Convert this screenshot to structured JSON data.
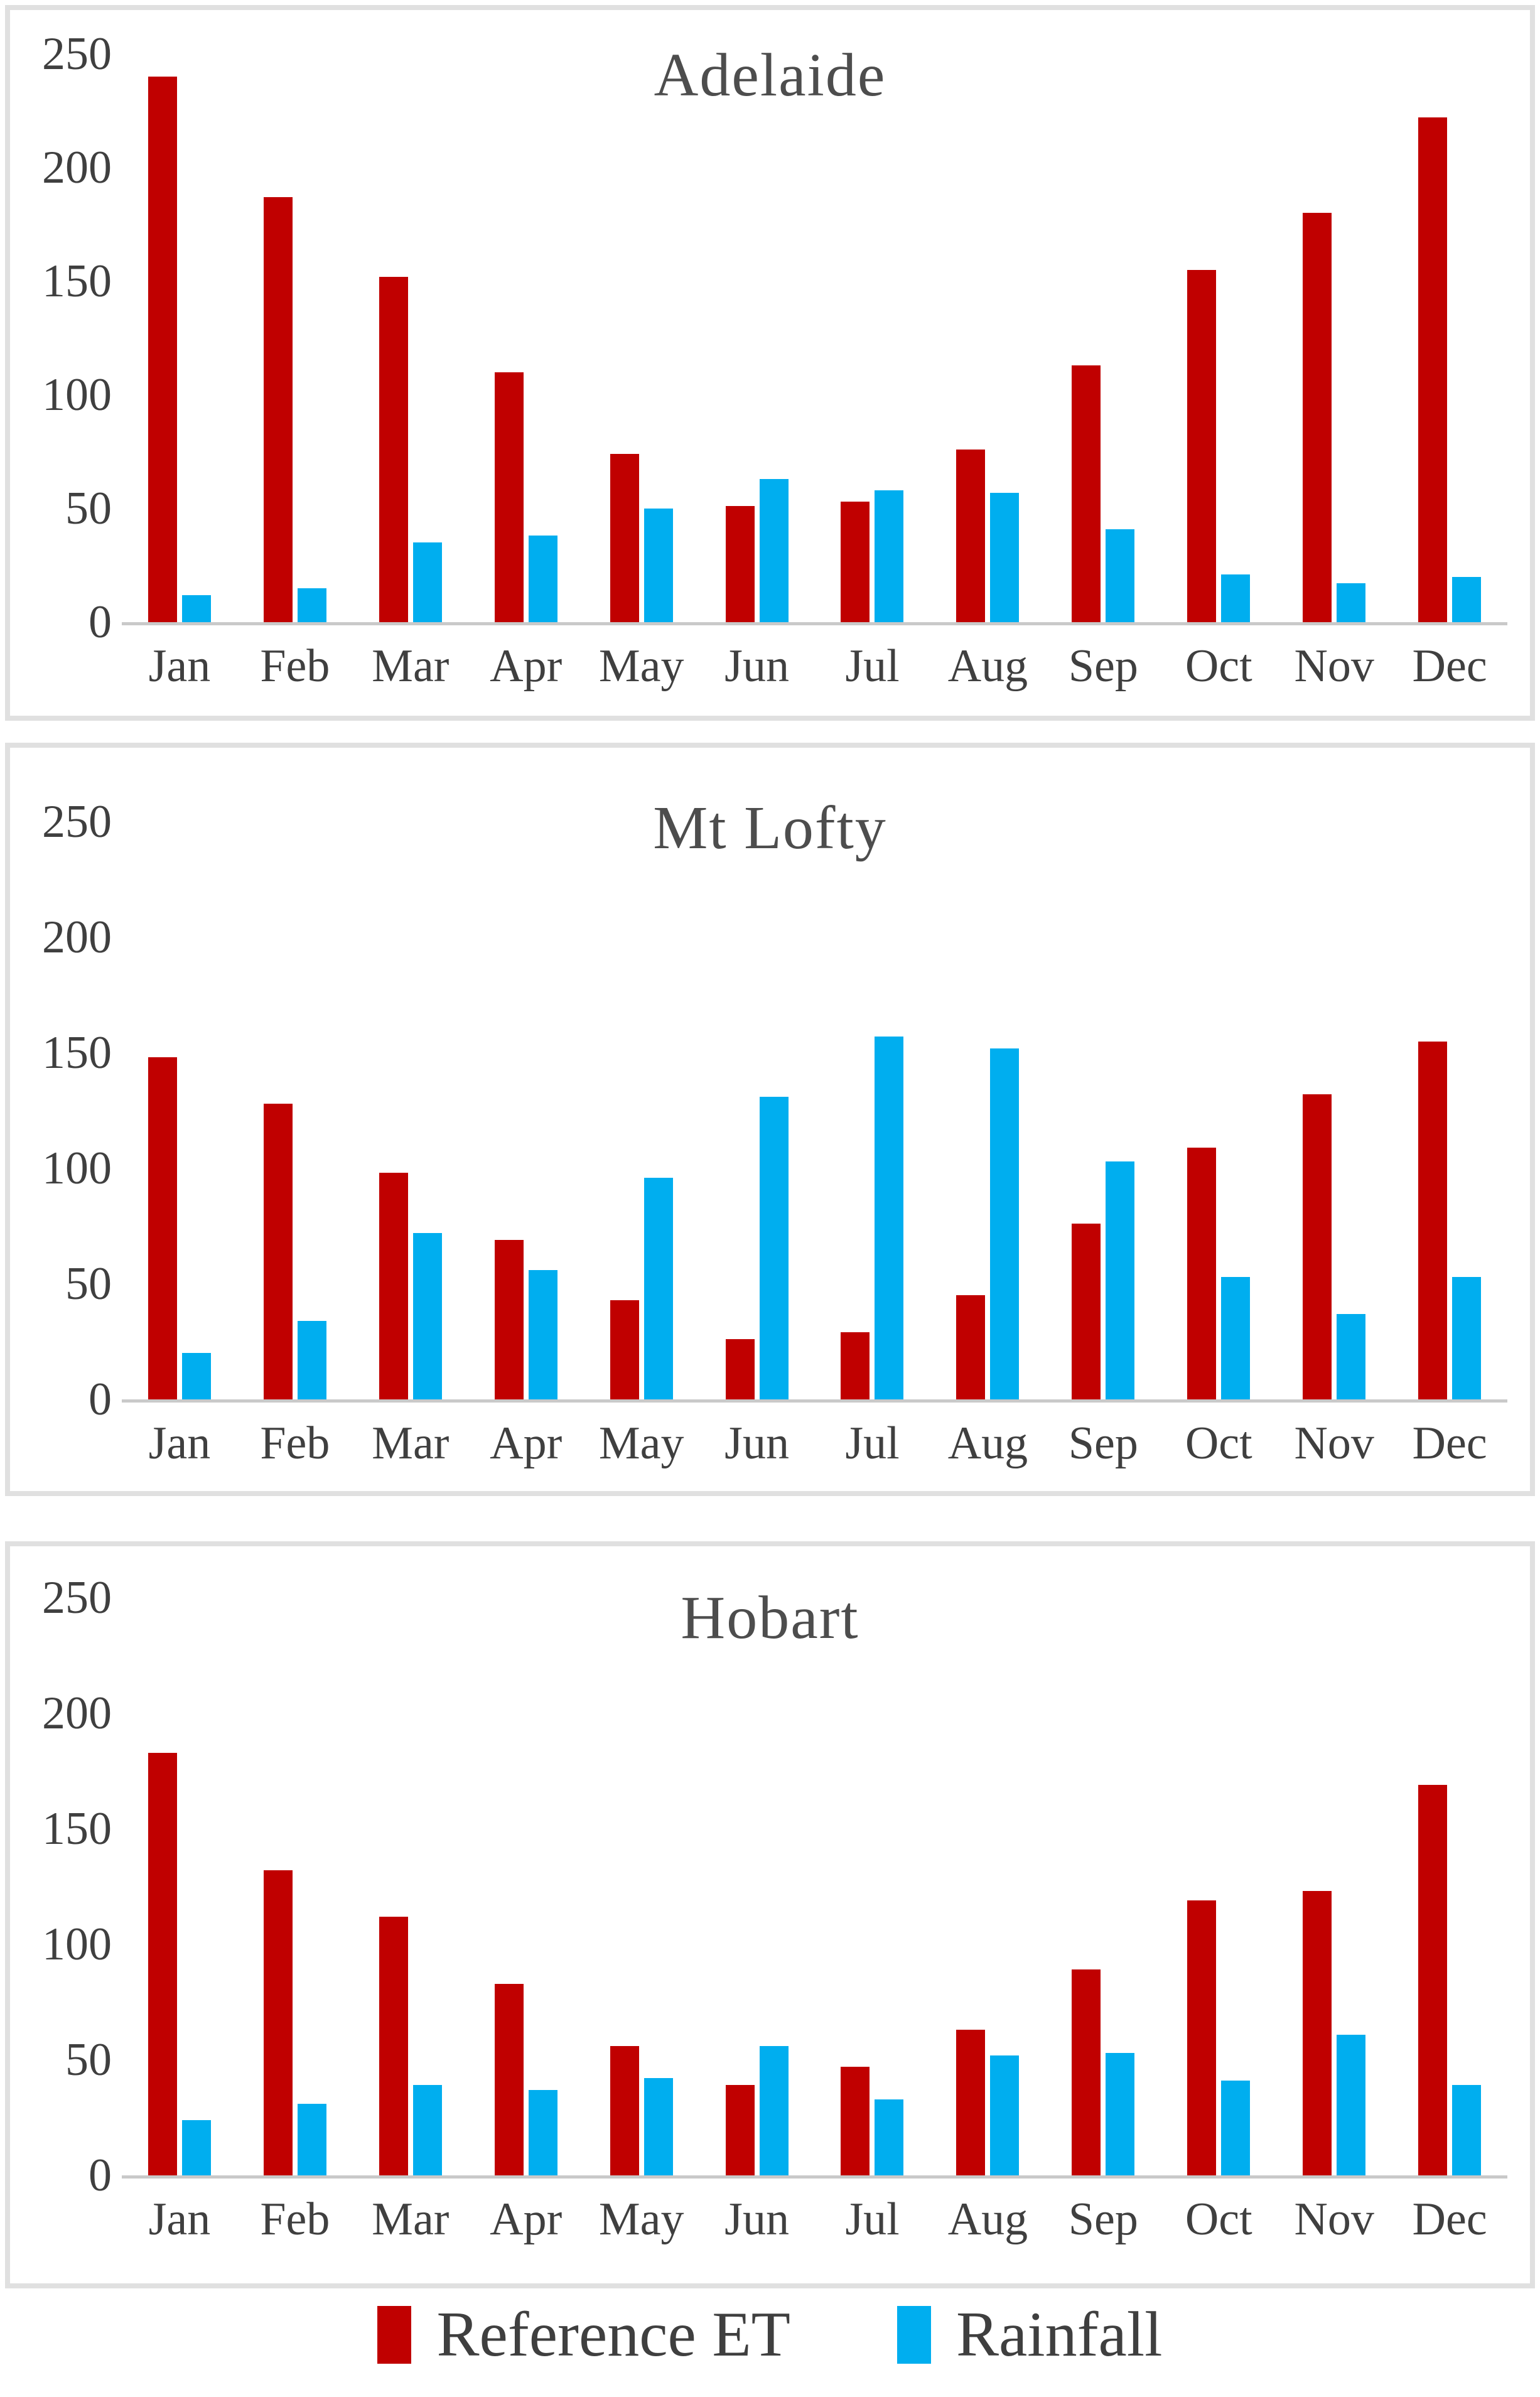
{
  "colors": {
    "reference_et": "#c00000",
    "rainfall": "#00aeef",
    "axis_line": "#c9c9c9",
    "tick_text": "#3f3f3f",
    "title_text": "#4d4d4d",
    "chart_border": "#e0e0e0"
  },
  "legend": {
    "items": [
      {
        "label": "Reference ET",
        "color": "#c00000"
      },
      {
        "label": "Rainfall",
        "color": "#00aeef"
      }
    ]
  },
  "chart_data": [
    {
      "type": "bar",
      "title": "Adelaide",
      "categories": [
        "Jan",
        "Feb",
        "Mar",
        "Apr",
        "May",
        "Jun",
        "Jul",
        "Aug",
        "Sep",
        "Oct",
        "Nov",
        "Dec"
      ],
      "series": [
        {
          "name": "Reference ET",
          "color": "#c00000",
          "values": [
            240,
            187,
            152,
            110,
            74,
            51,
            53,
            76,
            113,
            155,
            180,
            222
          ]
        },
        {
          "name": "Rainfall",
          "color": "#00aeef",
          "values": [
            12,
            15,
            35,
            38,
            50,
            63,
            58,
            57,
            41,
            21,
            17,
            20
          ]
        }
      ],
      "xlabel": "",
      "ylabel": "",
      "ylim": [
        0,
        250
      ],
      "yticks": [
        0,
        50,
        100,
        150,
        200,
        250
      ],
      "grid": false,
      "legend_position": "shared-bottom"
    },
    {
      "type": "bar",
      "title": "Mt Lofty",
      "categories": [
        "Jan",
        "Feb",
        "Mar",
        "Apr",
        "May",
        "Jun",
        "Jul",
        "Aug",
        "Sep",
        "Oct",
        "Nov",
        "Dec"
      ],
      "series": [
        {
          "name": "Reference ET",
          "color": "#c00000",
          "values": [
            148,
            128,
            98,
            69,
            43,
            26,
            29,
            45,
            76,
            109,
            132,
            155
          ]
        },
        {
          "name": "Rainfall",
          "color": "#00aeef",
          "values": [
            20,
            34,
            72,
            56,
            96,
            131,
            157,
            152,
            103,
            53,
            37,
            53
          ]
        }
      ],
      "xlabel": "",
      "ylabel": "",
      "ylim": [
        0,
        250
      ],
      "yticks": [
        0,
        50,
        100,
        150,
        200,
        250
      ],
      "grid": false,
      "legend_position": "shared-bottom"
    },
    {
      "type": "bar",
      "title": "Hobart",
      "categories": [
        "Jan",
        "Feb",
        "Mar",
        "Apr",
        "May",
        "Jun",
        "Jul",
        "Aug",
        "Sep",
        "Oct",
        "Nov",
        "Dec"
      ],
      "series": [
        {
          "name": "Reference ET",
          "color": "#c00000",
          "values": [
            183,
            132,
            112,
            83,
            56,
            39,
            47,
            63,
            89,
            119,
            123,
            169
          ]
        },
        {
          "name": "Rainfall",
          "color": "#00aeef",
          "values": [
            24,
            31,
            39,
            37,
            42,
            56,
            33,
            52,
            53,
            41,
            61,
            39
          ]
        }
      ],
      "xlabel": "",
      "ylabel": "",
      "ylim": [
        0,
        250
      ],
      "yticks": [
        0,
        50,
        100,
        150,
        200,
        250
      ],
      "grid": false,
      "legend_position": "shared-bottom"
    }
  ]
}
